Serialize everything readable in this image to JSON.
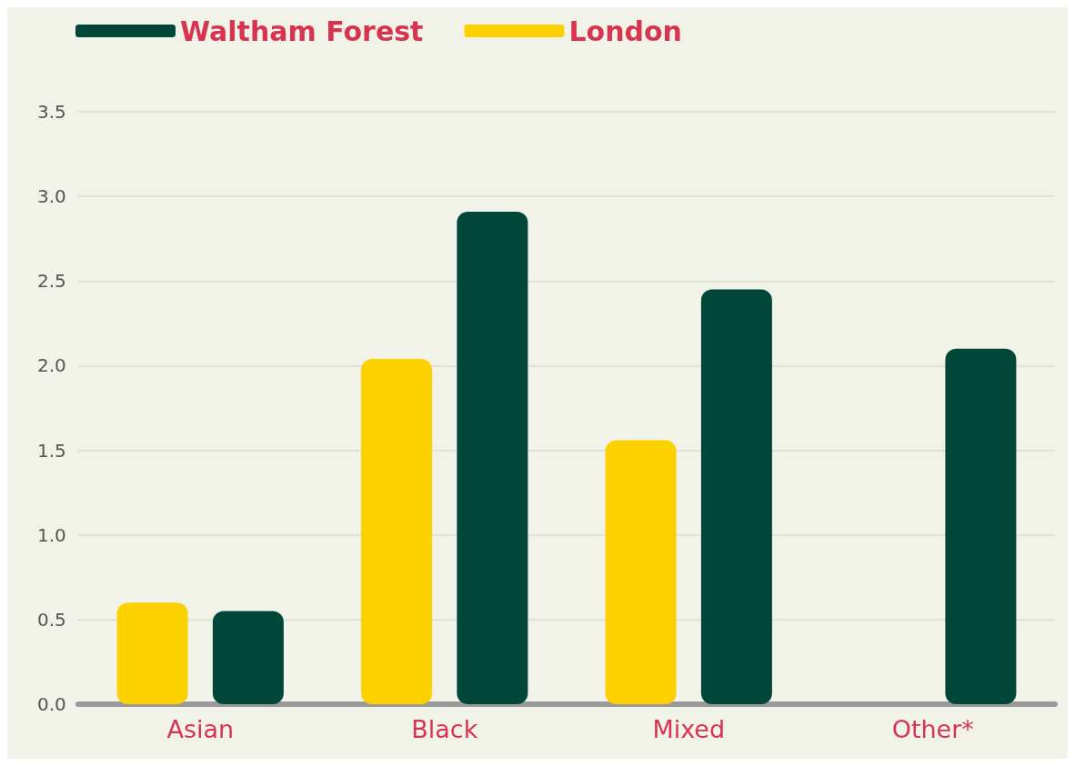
{
  "chart_data": {
    "type": "bar",
    "categories": [
      "Asian",
      "Black",
      "Mixed",
      "Other*"
    ],
    "series": [
      {
        "name": "London",
        "color": "#fdd000",
        "values": [
          0.6,
          2.04,
          1.56,
          null
        ]
      },
      {
        "name": "Waltham Forest",
        "color": "#00473a",
        "values": [
          0.55,
          2.91,
          2.45,
          2.1
        ]
      }
    ],
    "ylim": [
      0,
      3.5
    ],
    "yticks": [
      {
        "value": 0,
        "label": "0.0"
      },
      0.5,
      {
        "value": 1,
        "label": "1.0"
      },
      1.5,
      {
        "value": 2,
        "label": "2.0"
      },
      2.5,
      {
        "value": 3,
        "label": "3.0"
      },
      3.5
    ],
    "grid": "y",
    "legend": "top left"
  }
}
